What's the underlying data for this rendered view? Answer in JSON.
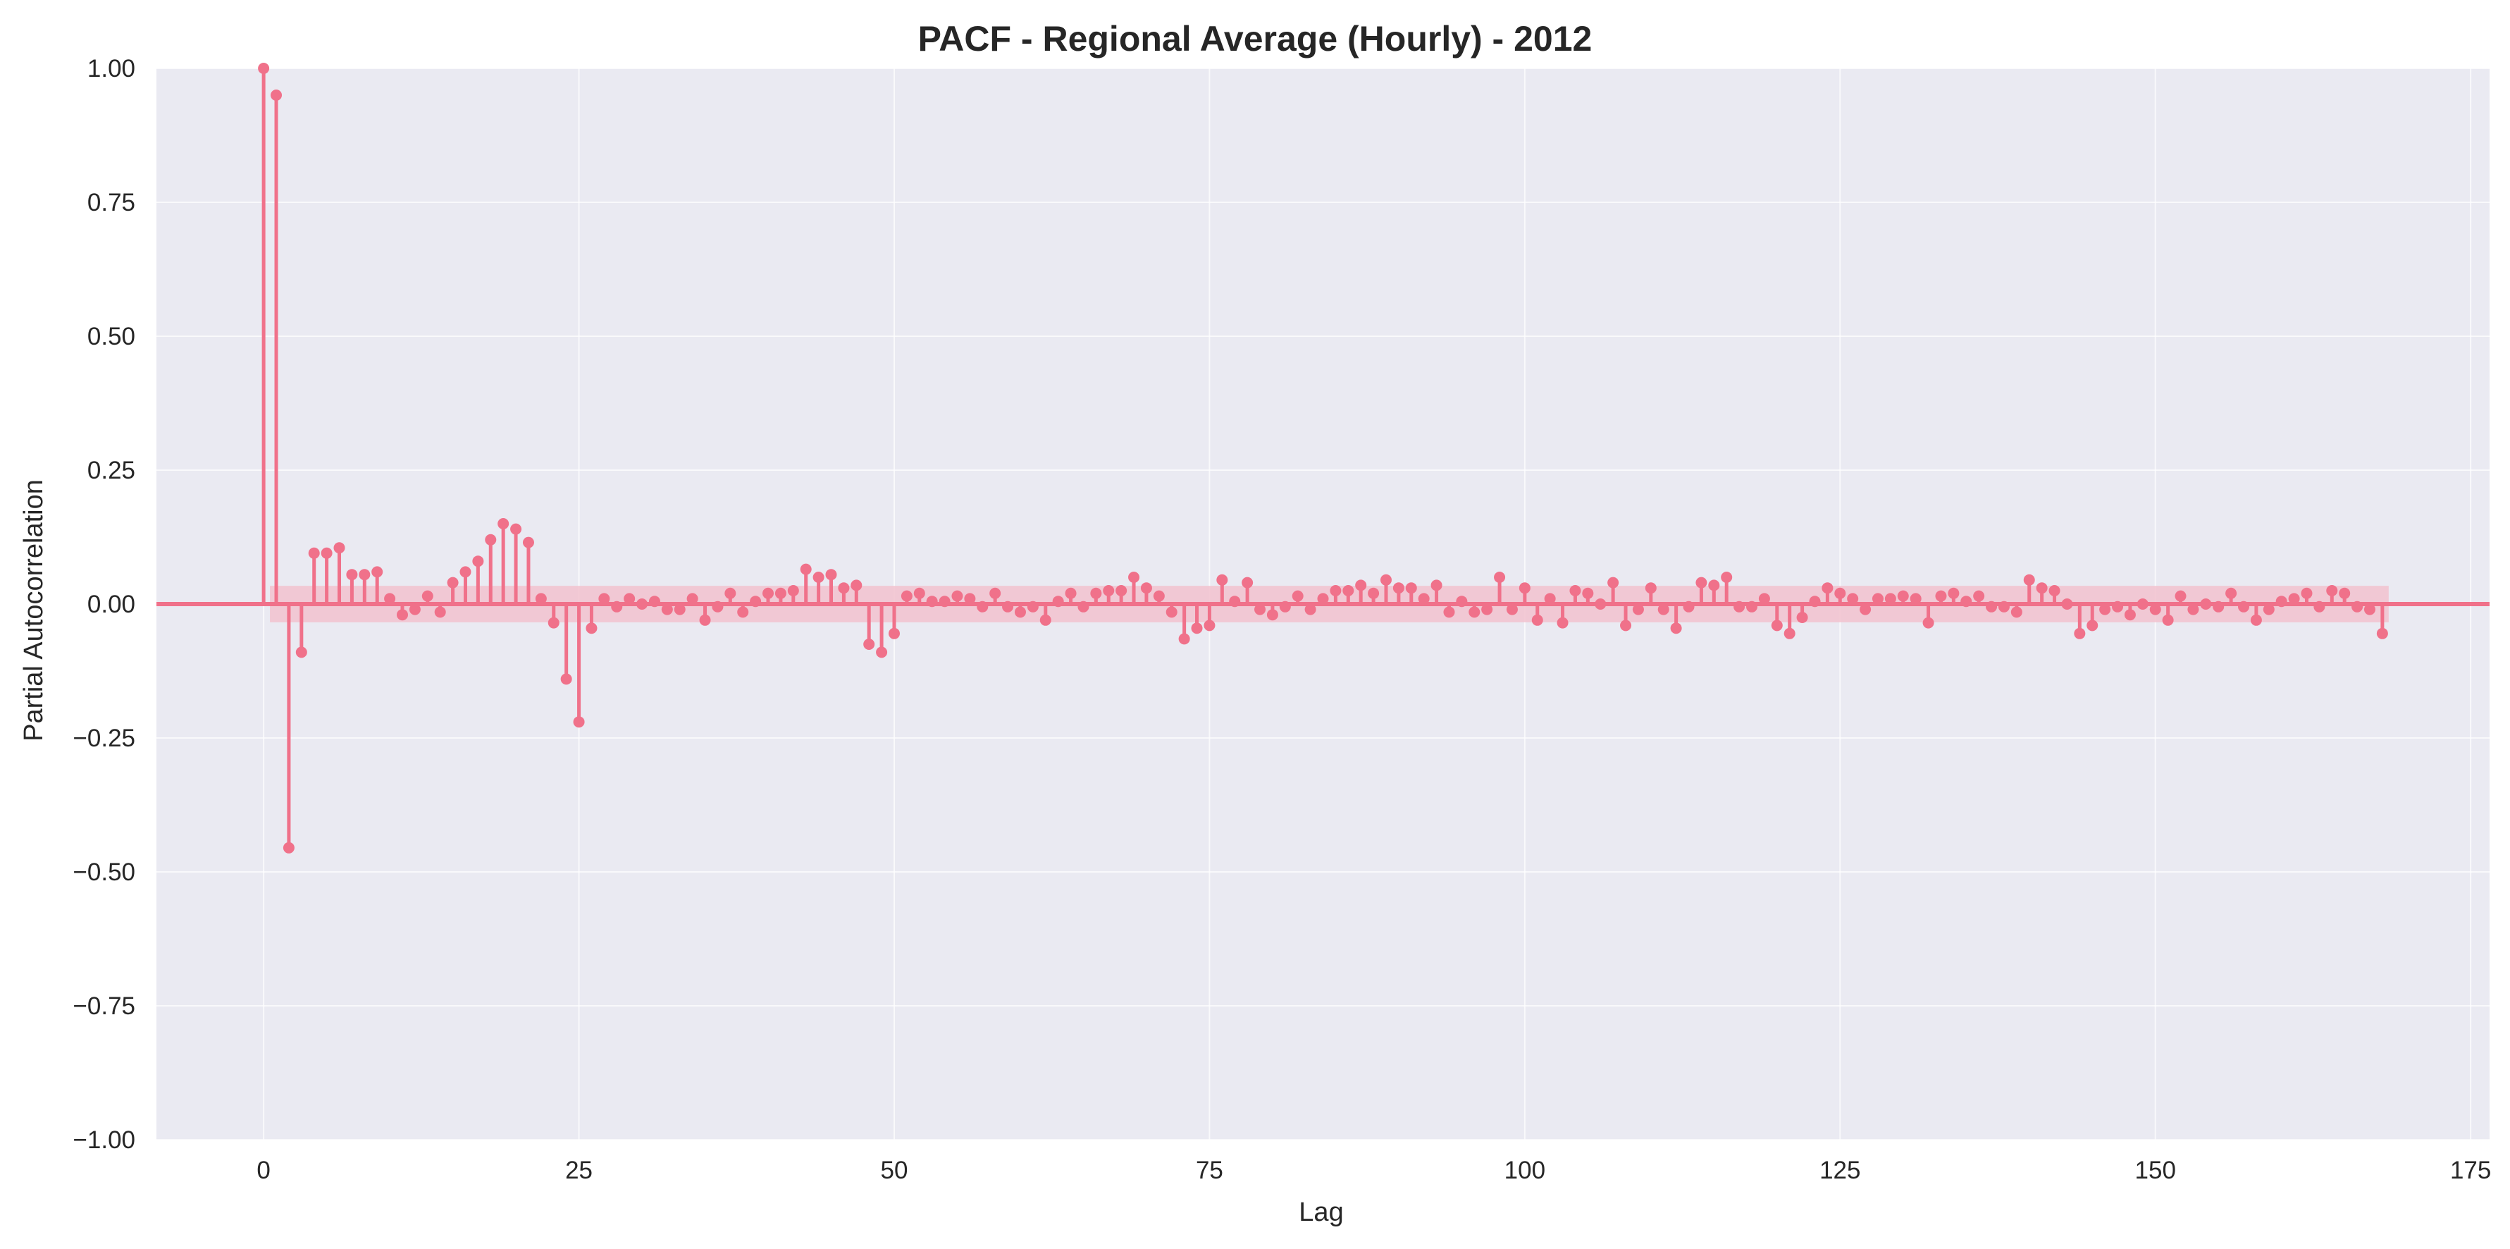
{
  "chart_data": {
    "type": "stem",
    "title": "PACF - Regional Average (Hourly) - 2012",
    "xlabel": "Lag",
    "ylabel": "Partial Autocorrelation",
    "xlim": [
      -8.5,
      176.5
    ],
    "ylim": [
      -1.0,
      1.0
    ],
    "xticks": [
      0,
      25,
      50,
      75,
      100,
      125,
      150,
      175
    ],
    "xtick_labels": [
      "0",
      "25",
      "50",
      "75",
      "100",
      "125",
      "150",
      "175"
    ],
    "yticks": [
      -1.0,
      -0.75,
      -0.5,
      -0.25,
      0.0,
      0.25,
      0.5,
      0.75,
      1.0
    ],
    "ytick_labels": [
      "−1.00",
      "−0.75",
      "−0.50",
      "−0.25",
      "0.00",
      "0.25",
      "0.50",
      "0.75",
      "1.00"
    ],
    "grid": true,
    "confidence_band": [
      -0.034,
      0.034
    ],
    "colors": {
      "series": "#f0718a",
      "band": "#f2c4d0",
      "background": "#eaeaf2",
      "grid": "#ffffff"
    },
    "series": [
      {
        "lags": [
          0,
          1,
          2,
          3,
          4,
          5,
          6,
          7,
          8,
          9,
          10,
          11,
          12,
          13,
          14,
          15,
          16,
          17,
          18,
          19,
          20,
          21,
          22,
          23,
          24,
          25,
          26,
          27,
          28,
          29,
          30,
          31,
          32,
          33,
          34,
          35,
          36,
          37,
          38,
          39,
          40,
          41,
          42,
          43,
          44,
          45,
          46,
          47,
          48,
          49,
          50,
          51,
          52,
          53,
          54,
          55,
          56,
          57,
          58,
          59,
          60,
          61,
          62,
          63,
          64,
          65,
          66,
          67,
          68,
          69,
          70,
          71,
          72,
          73,
          74,
          75,
          76,
          77,
          78,
          79,
          80,
          81,
          82,
          83,
          84,
          85,
          86,
          87,
          88,
          89,
          90,
          91,
          92,
          93,
          94,
          95,
          96,
          97,
          98,
          99,
          100,
          101,
          102,
          103,
          104,
          105,
          106,
          107,
          108,
          109,
          110,
          111,
          112,
          113,
          114,
          115,
          116,
          117,
          118,
          119,
          120,
          121,
          122,
          123,
          124,
          125,
          126,
          127,
          128,
          129,
          130,
          131,
          132,
          133,
          134,
          135,
          136,
          137,
          138,
          139,
          140,
          141,
          142,
          143,
          144,
          145,
          146,
          147,
          148,
          149,
          150,
          151,
          152,
          153,
          154,
          155,
          156,
          157,
          158,
          159,
          160,
          161,
          162,
          163,
          164,
          165,
          166,
          167,
          168
        ],
        "values": [
          1.0,
          0.95,
          -0.455,
          -0.09,
          0.095,
          0.095,
          0.105,
          0.055,
          0.055,
          0.06,
          0.01,
          -0.02,
          -0.01,
          0.015,
          -0.015,
          0.04,
          0.06,
          0.08,
          0.12,
          0.15,
          0.14,
          0.115,
          0.01,
          -0.035,
          -0.14,
          -0.22,
          -0.045,
          0.01,
          -0.005,
          0.01,
          0.0,
          0.005,
          -0.01,
          -0.01,
          0.01,
          -0.03,
          -0.005,
          0.02,
          -0.015,
          0.005,
          0.02,
          0.02,
          0.025,
          0.065,
          0.05,
          0.055,
          0.03,
          0.035,
          -0.075,
          -0.09,
          -0.055,
          0.015,
          0.02,
          0.005,
          0.005,
          0.015,
          0.01,
          -0.005,
          0.02,
          -0.005,
          -0.015,
          -0.005,
          -0.03,
          0.005,
          0.02,
          -0.005,
          0.02,
          0.025,
          0.025,
          0.05,
          0.03,
          0.015,
          -0.015,
          -0.065,
          -0.045,
          -0.04,
          0.045,
          0.005,
          0.04,
          -0.01,
          -0.02,
          -0.005,
          0.015,
          -0.01,
          0.01,
          0.025,
          0.025,
          0.035,
          0.02,
          0.045,
          0.03,
          0.03,
          0.01,
          0.035,
          -0.015,
          0.005,
          -0.015,
          -0.01,
          0.05,
          -0.01,
          0.03,
          -0.03,
          0.01,
          -0.035,
          0.025,
          0.02,
          0.0,
          0.04,
          -0.04,
          -0.01,
          0.03,
          -0.01,
          -0.045,
          -0.005,
          0.04,
          0.035,
          0.05,
          -0.005,
          -0.005,
          0.01,
          -0.04,
          -0.055,
          -0.025,
          0.005,
          0.03,
          0.02,
          0.01,
          -0.01,
          0.01,
          0.01,
          0.015,
          0.01,
          -0.035,
          0.015,
          0.02,
          0.005,
          0.015,
          -0.005,
          -0.005,
          -0.015,
          0.045,
          0.03,
          0.025,
          0.0,
          -0.055,
          -0.04,
          -0.01,
          -0.005,
          -0.02,
          0.0,
          -0.01,
          -0.03,
          0.015,
          -0.01,
          0.0,
          -0.005,
          0.02,
          -0.005,
          -0.03,
          -0.01,
          0.005,
          0.01,
          0.02,
          -0.005,
          0.025,
          0.02,
          -0.005,
          -0.01,
          -0.055
        ]
      }
    ]
  }
}
